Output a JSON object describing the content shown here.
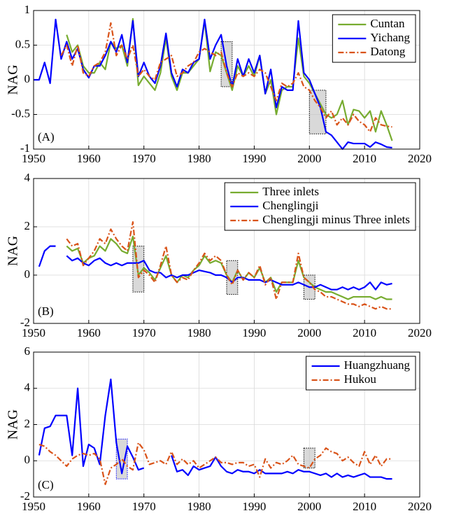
{
  "chart_data": [
    {
      "type": "line",
      "ylabel": "NAG",
      "label": "(A)",
      "grid": true,
      "legend": "upper right",
      "xlim": [
        1950,
        2020
      ],
      "xticks": [
        1950,
        1960,
        1970,
        1980,
        1990,
        2000,
        2010,
        2020
      ],
      "ylim": [
        -1,
        1
      ],
      "yticks": [
        -1,
        -0.5,
        0,
        0.5,
        1
      ],
      "x": [
        1950,
        1951,
        1952,
        1953,
        1954,
        1955,
        1956,
        1957,
        1958,
        1959,
        1960,
        1961,
        1962,
        1963,
        1964,
        1965,
        1966,
        1967,
        1968,
        1969,
        1970,
        1971,
        1972,
        1973,
        1974,
        1975,
        1976,
        1977,
        1978,
        1979,
        1980,
        1981,
        1982,
        1983,
        1984,
        1985,
        1986,
        1987,
        1988,
        1989,
        1990,
        1991,
        1992,
        1993,
        1994,
        1995,
        1996,
        1997,
        1998,
        1999,
        2000,
        2001,
        2002,
        2003,
        2004,
        2005,
        2006,
        2007,
        2008,
        2009,
        2010,
        2011,
        2012,
        2013,
        2014,
        2015
      ],
      "series": [
        {
          "name": "Cuntan",
          "color": "#77ac30",
          "linestyle": "solid",
          "values": [
            null,
            null,
            null,
            null,
            null,
            null,
            0.65,
            0.4,
            0.5,
            0.2,
            0.1,
            0.1,
            0.25,
            0.15,
            0.55,
            0.45,
            0.5,
            0.2,
            0.88,
            -0.08,
            0.05,
            -0.05,
            -0.15,
            0.1,
            0.6,
            0.05,
            -0.15,
            0.1,
            0.1,
            0.2,
            0.3,
            0.85,
            0.12,
            0.4,
            0.35,
            0.1,
            -0.15,
            0.2,
            0.05,
            0.2,
            0.05,
            0.35,
            -0.2,
            0,
            -0.5,
            -0.15,
            -0.1,
            -0.1,
            0.6,
            0.05,
            -0.05,
            -0.2,
            -0.35,
            -0.5,
            -0.55,
            -0.5,
            -0.3,
            -0.65,
            -0.43,
            -0.45,
            -0.55,
            -0.45,
            -0.75,
            -0.45,
            -0.65,
            -0.88
          ]
        },
        {
          "name": "Yichang",
          "color": "#0000ff",
          "linestyle": "solid",
          "values": [
            0,
            0,
            0.25,
            -0.05,
            0.87,
            0.3,
            0.55,
            0.3,
            0.45,
            0.15,
            0.03,
            0.2,
            0.2,
            0.35,
            0.55,
            0.4,
            0.65,
            0.25,
            0.85,
            0.05,
            0.25,
            0.05,
            -0.05,
            0.2,
            0.67,
            0.1,
            -0.1,
            0.15,
            0.1,
            0.25,
            0.3,
            0.87,
            0.3,
            0.5,
            0.65,
            0.2,
            -0.1,
            0.3,
            0.05,
            0.3,
            0.1,
            0.35,
            -0.2,
            0.15,
            -0.4,
            -0.1,
            -0.15,
            -0.15,
            0.85,
            0.1,
            0,
            -0.2,
            -0.4,
            -0.75,
            -0.8,
            -0.9,
            -1,
            -0.9,
            -0.92,
            -0.92,
            -0.92,
            -0.97,
            -0.9,
            -0.93,
            -0.97,
            -0.98
          ]
        },
        {
          "name": "Datong",
          "color": "#d95319",
          "linestyle": "dashdot",
          "values": [
            null,
            null,
            null,
            null,
            null,
            0.35,
            0.5,
            0.2,
            0.5,
            0.1,
            0.05,
            0.2,
            0.25,
            0.4,
            0.82,
            0.35,
            0.5,
            0.3,
            0.5,
            0.05,
            0.15,
            0.05,
            0,
            0.25,
            0.3,
            0.35,
            0.05,
            0.1,
            0.2,
            0.25,
            0.4,
            0.45,
            0.4,
            0.35,
            0.4,
            0.1,
            -0.1,
            0.1,
            0.05,
            0.1,
            0.05,
            0.15,
            0.1,
            -0.1,
            -0.3,
            -0.05,
            -0.1,
            -0.05,
            0.1,
            -0.1,
            -0.15,
            -0.3,
            -0.4,
            -0.55,
            -0.45,
            -0.65,
            -0.55,
            -0.65,
            -0.5,
            -0.6,
            -0.65,
            -0.75,
            -0.55,
            -0.65,
            -0.67,
            -0.68
          ]
        }
      ],
      "highlights": [
        {
          "x": [
            1984,
            1986
          ],
          "y": [
            -0.1,
            0.55
          ],
          "color": "#000000"
        },
        {
          "x": [
            2000,
            2003
          ],
          "y": [
            -0.78,
            -0.15
          ],
          "color": "#000000"
        }
      ]
    },
    {
      "type": "line",
      "ylabel": "NAG",
      "label": "(B)",
      "grid": true,
      "legend": "upper right",
      "xlim": [
        1950,
        2020
      ],
      "xticks": [
        1950,
        1960,
        1970,
        1980,
        1990,
        2000,
        2010,
        2020
      ],
      "ylim": [
        -2,
        4
      ],
      "yticks": [
        -2,
        0,
        2,
        4
      ],
      "x": [
        1950,
        1951,
        1952,
        1953,
        1954,
        1955,
        1956,
        1957,
        1958,
        1959,
        1960,
        1961,
        1962,
        1963,
        1964,
        1965,
        1966,
        1967,
        1968,
        1969,
        1970,
        1971,
        1972,
        1973,
        1974,
        1975,
        1976,
        1977,
        1978,
        1979,
        1980,
        1981,
        1982,
        1983,
        1984,
        1985,
        1986,
        1987,
        1988,
        1989,
        1990,
        1991,
        1992,
        1993,
        1994,
        1995,
        1996,
        1997,
        1998,
        1999,
        2000,
        2001,
        2002,
        2003,
        2004,
        2005,
        2006,
        2007,
        2008,
        2009,
        2010,
        2011,
        2012,
        2013,
        2014,
        2015
      ],
      "series": [
        {
          "name": "Three inlets",
          "color": "#77ac30",
          "linestyle": "solid",
          "values": [
            null,
            null,
            null,
            null,
            null,
            null,
            1.2,
            1,
            1.1,
            0.5,
            0.7,
            0.8,
            1.2,
            1,
            1.5,
            1.3,
            1,
            0.9,
            1.6,
            0,
            0.3,
            0.1,
            -0.2,
            0.3,
            0.8,
            0,
            -0.3,
            0,
            -0.1,
            0.2,
            0.4,
            0.8,
            0.5,
            0.6,
            0.5,
            0,
            -0.3,
            0.2,
            -0.2,
            0.1,
            -0.1,
            0.3,
            -0.3,
            -0.1,
            -0.7,
            -0.3,
            -0.3,
            -0.3,
            0.6,
            -0.1,
            -0.3,
            -0.5,
            -0.6,
            -0.7,
            -0.7,
            -0.8,
            -0.9,
            -1,
            -0.9,
            -0.9,
            -0.9,
            -0.9,
            -1,
            -0.9,
            -1,
            -1
          ]
        },
        {
          "name": "Chenglingji",
          "color": "#0000ff",
          "linestyle": "solid",
          "values": [
            null,
            0.35,
            1,
            1.2,
            1.2,
            null,
            0.8,
            0.6,
            0.7,
            0.5,
            0.4,
            0.6,
            0.7,
            0.5,
            0.4,
            0.5,
            0.4,
            0.5,
            0.5,
            0.5,
            0.6,
            0.2,
            0.1,
            0.1,
            -0.1,
            0,
            -0.1,
            0,
            0,
            0.1,
            0.2,
            0.15,
            0.1,
            0,
            0,
            -0.1,
            -0.3,
            -0.1,
            -0.1,
            -0.2,
            -0.2,
            -0.2,
            -0.3,
            -0.2,
            -0.3,
            -0.4,
            -0.4,
            -0.4,
            -0.3,
            -0.4,
            -0.5,
            -0.5,
            -0.4,
            -0.5,
            -0.6,
            -0.6,
            -0.5,
            -0.6,
            -0.5,
            -0.6,
            -0.5,
            -0.3,
            -0.6,
            -0.3,
            -0.4,
            -0.35
          ]
        },
        {
          "name": "Chenglingji minus Three inlets",
          "color": "#d95319",
          "linestyle": "dashdot",
          "values": [
            null,
            null,
            null,
            null,
            null,
            null,
            1.5,
            1.2,
            1.3,
            0.4,
            0.7,
            1,
            1.5,
            1.3,
            1.9,
            1.5,
            1.2,
            1,
            2.2,
            -0.1,
            0.2,
            0,
            -0.3,
            0.4,
            1.2,
            0,
            -0.3,
            -0.1,
            -0.2,
            0.2,
            0.5,
            0.9,
            0.6,
            0.8,
            0.6,
            0,
            -0.4,
            0.2,
            -0.2,
            0.1,
            -0.1,
            0.4,
            -0.4,
            -0.1,
            -1,
            -0.3,
            -0.3,
            -0.3,
            0.9,
            -0.1,
            -0.3,
            -0.6,
            -0.7,
            -0.9,
            -0.9,
            -1,
            -1.1,
            -1.2,
            -1.2,
            -1.3,
            -1.2,
            -1.3,
            -1.4,
            -1.3,
            -1.4,
            -1.4
          ]
        }
      ],
      "highlights": [
        {
          "x": [
            1968,
            1970
          ],
          "y": [
            -0.7,
            1.2
          ],
          "color": "#000000"
        },
        {
          "x": [
            1985,
            1987
          ],
          "y": [
            -0.8,
            0.6
          ],
          "color": "#000000"
        },
        {
          "x": [
            1999,
            2001
          ],
          "y": [
            -1,
            0
          ],
          "color": "#000000"
        }
      ]
    },
    {
      "type": "line",
      "ylabel": "NAG",
      "label": "(C)",
      "grid": true,
      "legend": "upper right",
      "xlim": [
        1950,
        2020
      ],
      "xticks": [
        1950,
        1960,
        1970,
        1980,
        1990,
        2000,
        2010,
        2020
      ],
      "ylim": [
        -2,
        6
      ],
      "yticks": [
        -2,
        0,
        2,
        4,
        6
      ],
      "x": [
        1950,
        1951,
        1952,
        1953,
        1954,
        1955,
        1956,
        1957,
        1958,
        1959,
        1960,
        1961,
        1962,
        1963,
        1964,
        1965,
        1966,
        1967,
        1968,
        1969,
        1970,
        1971,
        1972,
        1973,
        1974,
        1975,
        1976,
        1977,
        1978,
        1979,
        1980,
        1981,
        1982,
        1983,
        1984,
        1985,
        1986,
        1987,
        1988,
        1989,
        1990,
        1991,
        1992,
        1993,
        1994,
        1995,
        1996,
        1997,
        1998,
        1999,
        2000,
        2001,
        2002,
        2003,
        2004,
        2005,
        2006,
        2007,
        2008,
        2009,
        2010,
        2011,
        2012,
        2013,
        2014,
        2015
      ],
      "series": [
        {
          "name": "Huangzhuang",
          "color": "#0000ff",
          "linestyle": "solid",
          "values": [
            null,
            0.3,
            1.8,
            1.9,
            2.5,
            2.5,
            2.5,
            0.3,
            4,
            -0.3,
            0.9,
            0.7,
            -0.2,
            2.5,
            4.5,
            1,
            -0.7,
            0.8,
            0.2,
            -0.5,
            -0.4,
            null,
            null,
            null,
            null,
            0.3,
            -0.6,
            -0.5,
            -0.8,
            -0.3,
            -0.5,
            -0.4,
            -0.3,
            0.2,
            -0.3,
            -0.6,
            -0.7,
            -0.5,
            -0.6,
            -0.6,
            -0.7,
            -0.5,
            -0.7,
            -0.7,
            -0.7,
            -0.7,
            -0.6,
            -0.7,
            -0.5,
            -0.6,
            -0.6,
            -0.7,
            -0.8,
            -0.7,
            -0.9,
            -0.7,
            -0.9,
            -0.8,
            -0.9,
            -0.8,
            -0.7,
            -0.9,
            -0.9,
            -0.9,
            -1,
            -1
          ]
        },
        {
          "name": "Hukou",
          "color": "#d95319",
          "linestyle": "dashdot",
          "values": [
            null,
            0.9,
            0.8,
            0.5,
            0.3,
            0,
            -0.3,
            0.1,
            0.3,
            0.4,
            0.3,
            0.4,
            0.1,
            -1.3,
            -0.4,
            -0.2,
            0.1,
            -0.3,
            -0.5,
            1,
            0.6,
            -0.2,
            -0.1,
            0,
            -0.2,
            0.5,
            -0.2,
            0.1,
            -0.2,
            0,
            -0.4,
            -0.2,
            0,
            0.2,
            -0.1,
            -0.1,
            -0.2,
            -0.1,
            -0.1,
            -0.3,
            -0.2,
            -0.9,
            0.1,
            -0.4,
            -0.1,
            -0.2,
            0,
            0.3,
            -0.2,
            -0.3,
            -0.4,
            0.1,
            0.3,
            0.7,
            0.5,
            0.4,
            0,
            0.2,
            -0.1,
            -0.3,
            0.5,
            -0.2,
            0.3,
            -0.3,
            0.1,
            0.1
          ]
        }
      ],
      "highlights": [
        {
          "x": [
            1965,
            1967
          ],
          "y": [
            -1,
            1.2
          ],
          "color": "#0000ff"
        },
        {
          "x": [
            1999,
            2001
          ],
          "y": [
            -0.4,
            0.7
          ],
          "color": "#000000"
        }
      ]
    }
  ]
}
